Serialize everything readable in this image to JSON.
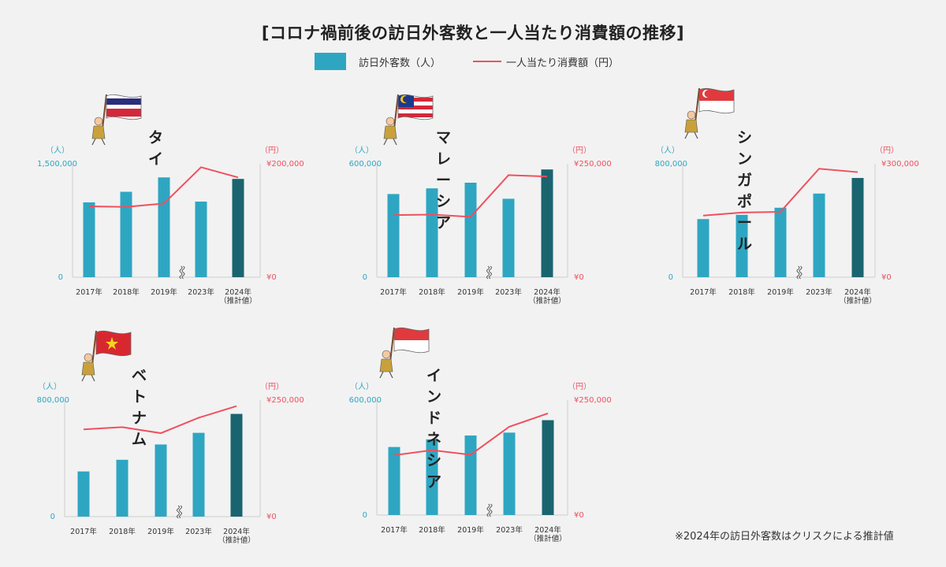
{
  "title": "[コロナ禍前後の訪日外客数と一人当たり消費額の推移]",
  "legend": {
    "bar_label": "訪日外客数（人）",
    "line_label": "一人当たり消費額（円）"
  },
  "footnote": "※2024年の訪日外客数はクリスクによる推計値",
  "colors": {
    "bar": "#2ea6c2",
    "bar_estimate": "#1a6470",
    "line": "#f0505e"
  },
  "chart_data": [
    {
      "type": "bar",
      "title": "タイ",
      "flag": "thailand-flag-icon",
      "left_unit": "（人）",
      "right_unit": "（円）",
      "categories": [
        "2017年",
        "2018年",
        "2019年",
        "2023年",
        "2024年（推計値）"
      ],
      "bar_ylim": [
        0,
        1500000
      ],
      "bar_tick_labels": [
        "0",
        "1,500,000"
      ],
      "line_ylim": [
        0,
        200000
      ],
      "line_tick_labels": [
        "¥0",
        "¥200,000"
      ],
      "series": [
        {
          "name": "訪日外客数（人）",
          "type": "bar",
          "values": [
            990000,
            1130000,
            1320000,
            1000000,
            1300000
          ]
        },
        {
          "name": "一人当たり消費額（円）",
          "type": "line",
          "values": [
            125000,
            124000,
            130000,
            194000,
            176000
          ]
        }
      ]
    },
    {
      "type": "bar",
      "title": "マレーシア",
      "flag": "malaysia-flag-icon",
      "left_unit": "（人）",
      "right_unit": "（円）",
      "categories": [
        "2017年",
        "2018年",
        "2019年",
        "2023年",
        "2024年（推計値）"
      ],
      "bar_ylim": [
        0,
        600000
      ],
      "bar_tick_labels": [
        "0",
        "600,000"
      ],
      "line_ylim": [
        0,
        250000
      ],
      "line_tick_labels": [
        "¥0",
        "¥250,000"
      ],
      "series": [
        {
          "name": "訪日外客数（人）",
          "type": "bar",
          "values": [
            440000,
            470000,
            500000,
            415000,
            570000
          ]
        },
        {
          "name": "一人当たり消費額（円）",
          "type": "line",
          "values": [
            137000,
            138000,
            133000,
            225000,
            222000
          ]
        }
      ]
    },
    {
      "type": "bar",
      "title": "シンガポール",
      "flag": "singapore-flag-icon",
      "left_unit": "（人）",
      "right_unit": "（円）",
      "categories": [
        "2017年",
        "2018年",
        "2019年",
        "2023年",
        "2024年（推計値）"
      ],
      "bar_ylim": [
        0,
        800000
      ],
      "bar_tick_labels": [
        "0",
        "800,000"
      ],
      "line_ylim": [
        0,
        300000
      ],
      "line_tick_labels": [
        "¥0",
        "¥300,000"
      ],
      "series": [
        {
          "name": "訪日外客数（人）",
          "type": "bar",
          "values": [
            410000,
            440000,
            490000,
            590000,
            700000
          ]
        },
        {
          "name": "一人当たり消費額（円）",
          "type": "line",
          "values": [
            163000,
            171000,
            173000,
            287000,
            278000
          ]
        }
      ]
    },
    {
      "type": "bar",
      "title": "ベトナム",
      "flag": "vietnam-flag-icon",
      "left_unit": "（人）",
      "right_unit": "（円）",
      "categories": [
        "2017年",
        "2018年",
        "2019年",
        "2023年",
        "2024年（推計値）"
      ],
      "bar_ylim": [
        0,
        800000
      ],
      "bar_tick_labels": [
        "0",
        "800,000"
      ],
      "line_ylim": [
        0,
        250000
      ],
      "line_tick_labels": [
        "¥0",
        "¥250,000"
      ],
      "series": [
        {
          "name": "訪日外客数（人）",
          "type": "bar",
          "values": [
            310000,
            390000,
            495000,
            575000,
            705000
          ]
        },
        {
          "name": "一人当たり消費額（円）",
          "type": "line",
          "values": [
            187000,
            192000,
            179000,
            212000,
            237000
          ]
        }
      ]
    },
    {
      "type": "bar",
      "title": "インドネシア",
      "flag": "indonesia-flag-icon",
      "left_unit": "（人）",
      "right_unit": "（円）",
      "categories": [
        "2017年",
        "2018年",
        "2019年",
        "2023年",
        "2024年（推計値）"
      ],
      "bar_ylim": [
        0,
        600000
      ],
      "bar_tick_labels": [
        "0",
        "600,000"
      ],
      "line_ylim": [
        0,
        250000
      ],
      "line_tick_labels": [
        "¥0",
        "¥250,000"
      ],
      "series": [
        {
          "name": "訪日外客数（人）",
          "type": "bar",
          "values": [
            355000,
            395000,
            415000,
            430000,
            495000
          ]
        },
        {
          "name": "一人当たり消費額（円）",
          "type": "line",
          "values": [
            130000,
            141000,
            131000,
            192000,
            221000
          ]
        }
      ]
    }
  ]
}
